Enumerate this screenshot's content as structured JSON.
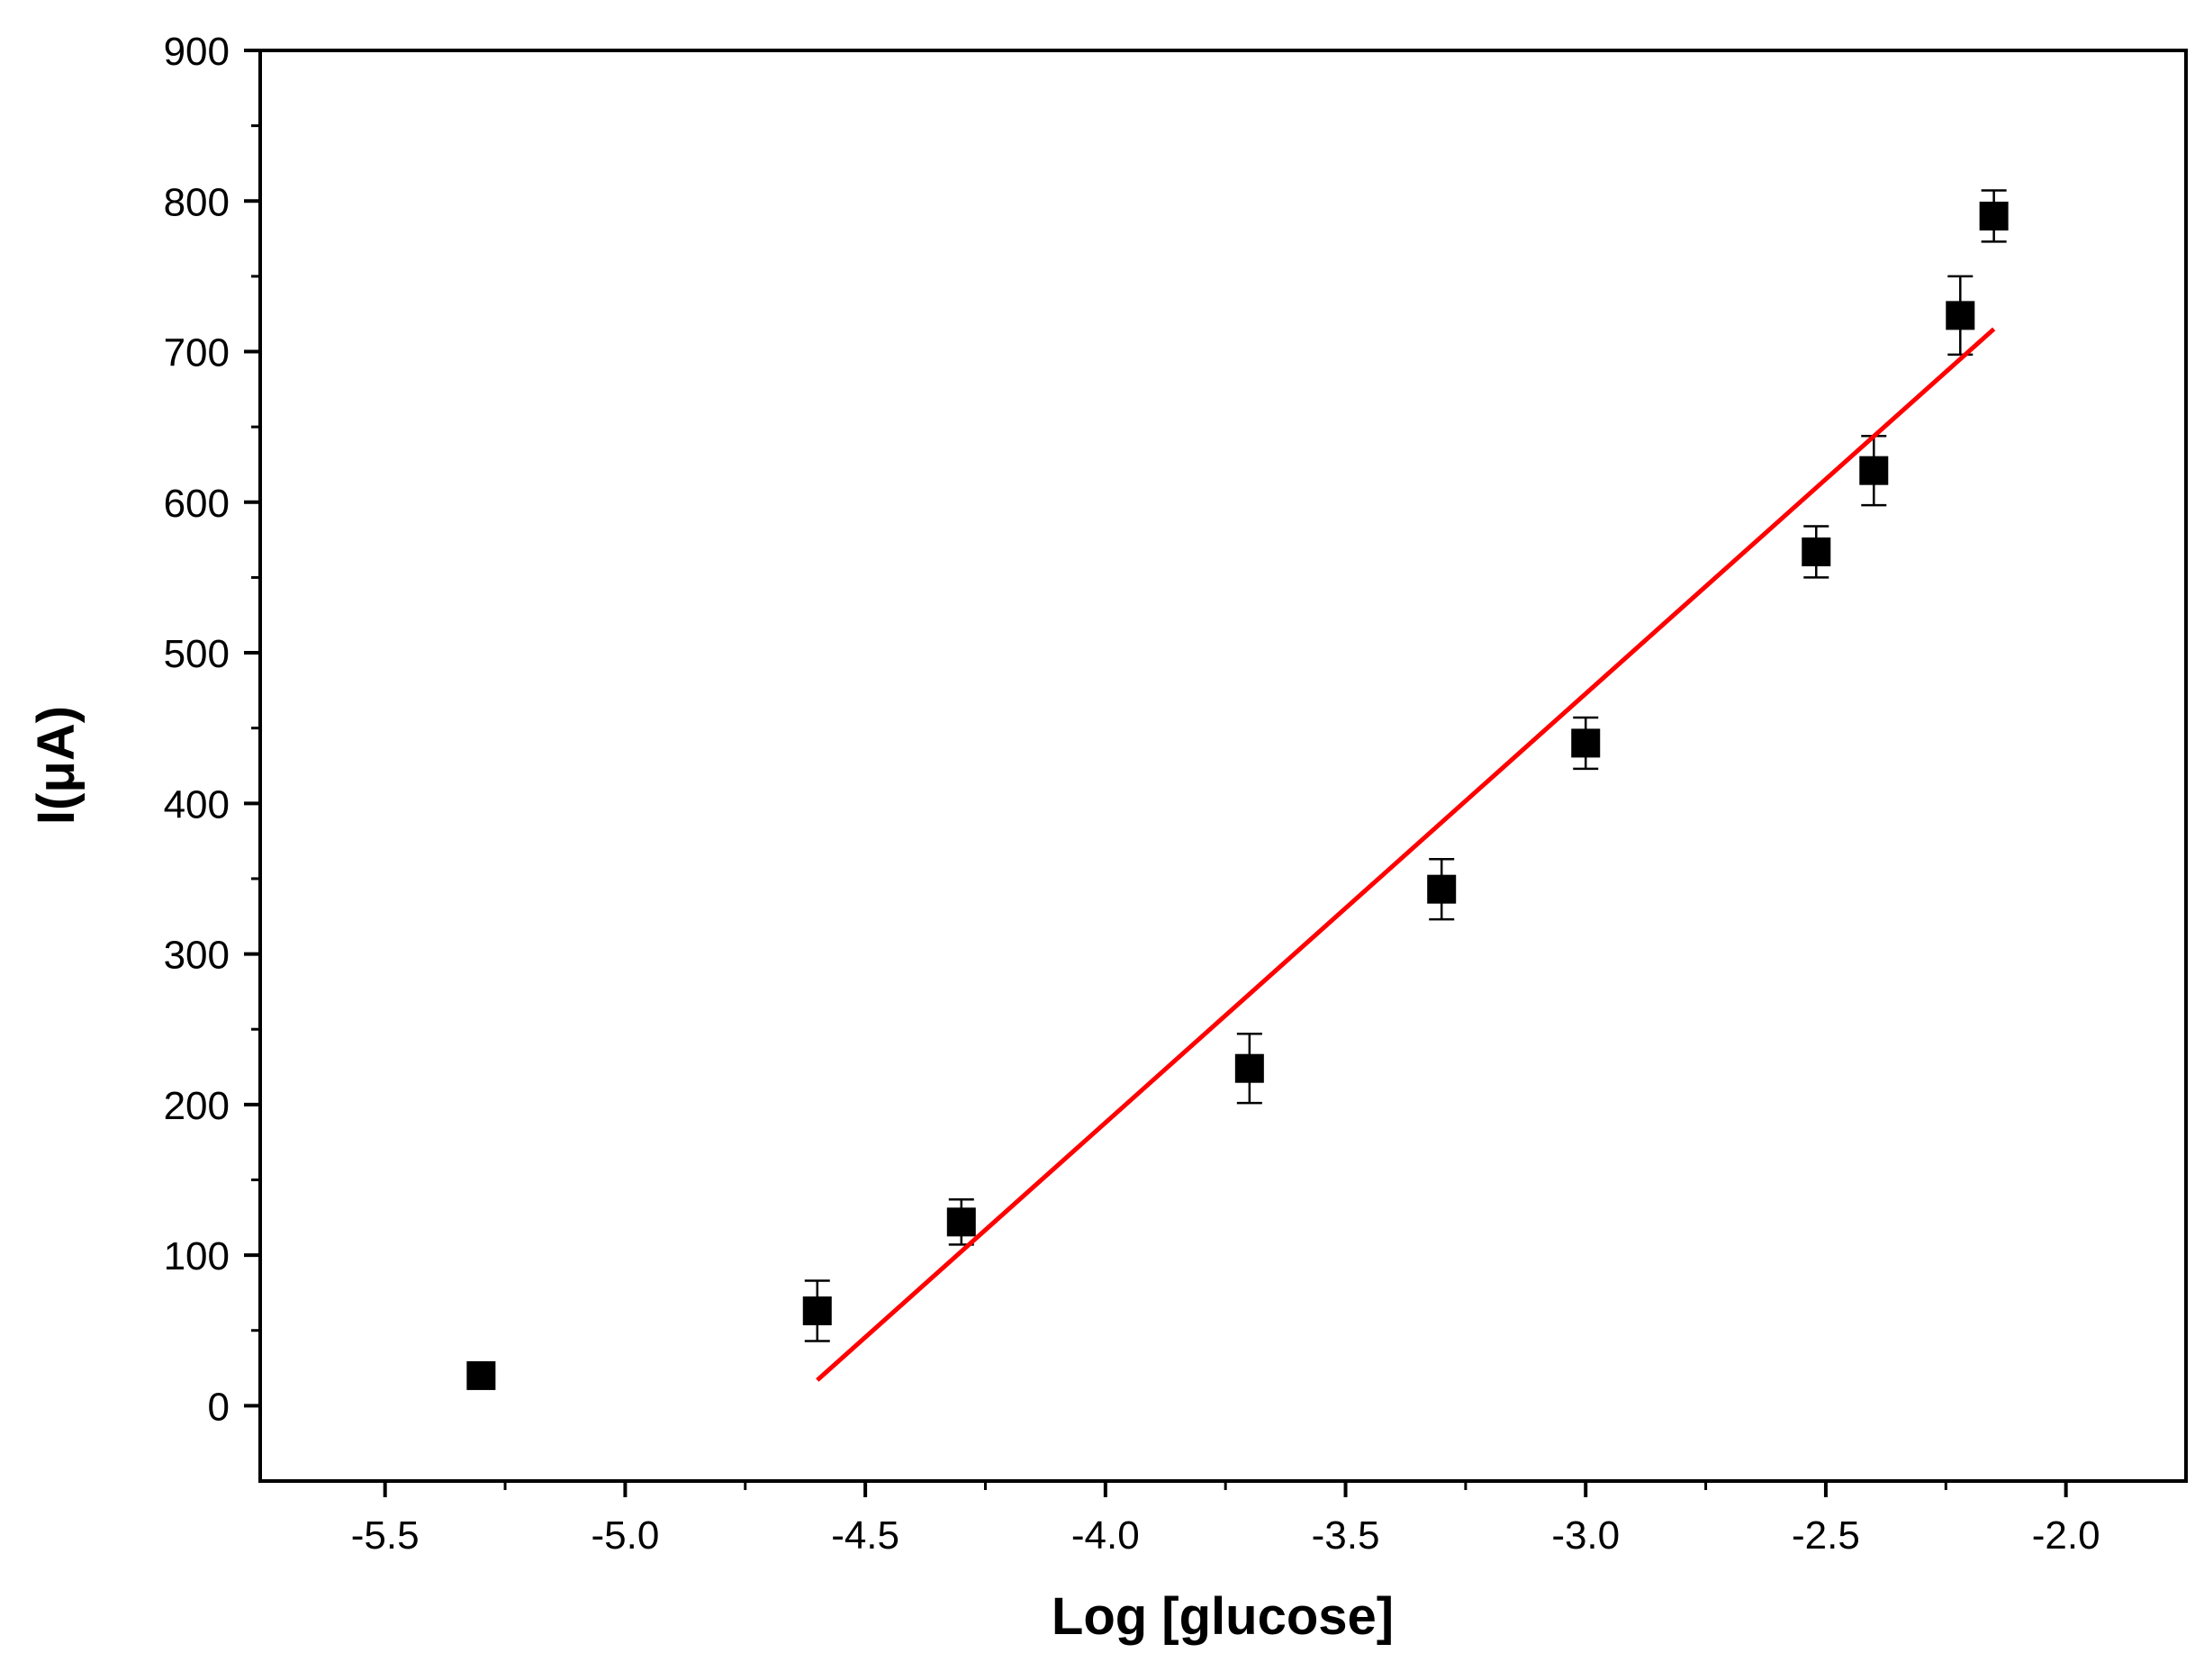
{
  "chart_data": {
    "type": "scatter",
    "xlabel": "Log [glucose]",
    "ylabel": "I(μA)",
    "xlim": [
      -5.76,
      -1.75
    ],
    "ylim": [
      -50,
      900
    ],
    "xticks": [
      {
        "value": -5.5,
        "label": "-5.5"
      },
      {
        "value": -5,
        "label": "-5.0"
      },
      {
        "value": -4.5,
        "label": "-4.5"
      },
      {
        "value": -4,
        "label": "-4.0"
      },
      {
        "value": -3.5,
        "label": "-3.5"
      },
      {
        "value": -3,
        "label": "-3.0"
      },
      {
        "value": -2.5,
        "label": "-2.5"
      },
      {
        "value": -2,
        "label": "-2.0"
      }
    ],
    "yticks": [
      0,
      100,
      200,
      300,
      400,
      500,
      600,
      700,
      800,
      900
    ],
    "series": [
      {
        "color": "#000000",
        "marker": "square",
        "x": [
          -5.3,
          -4.6,
          -4.3,
          -3.7,
          -3.3,
          -3.0,
          -2.52,
          -2.4,
          -2.22,
          -2.15
        ],
        "values": [
          20,
          63,
          122,
          224,
          343,
          440,
          567,
          621,
          724,
          790
        ],
        "errors": [
          0,
          20,
          15,
          23,
          20,
          17,
          17,
          23,
          26,
          17
        ]
      },
      {
        "color": "#ff0000",
        "line": true,
        "x": [
          -4.6,
          -2.15
        ],
        "values": [
          17,
          715
        ]
      }
    ]
  }
}
